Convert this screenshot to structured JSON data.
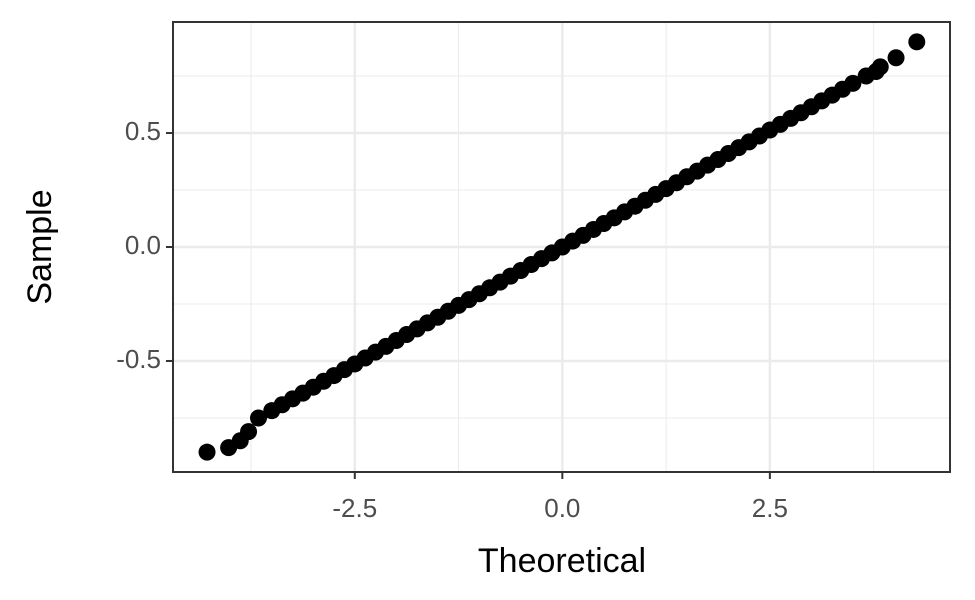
{
  "chart_data": {
    "type": "scatter",
    "xlabel": "Theoretical",
    "ylabel": "Sample",
    "x": [
      -4.28,
      -4.02,
      -3.88,
      -3.78,
      -3.66,
      -3.5,
      -3.375,
      -3.25,
      -3.125,
      -3.0,
      -2.875,
      -2.75,
      -2.625,
      -2.5,
      -2.375,
      -2.25,
      -2.125,
      -2.0,
      -1.875,
      -1.75,
      -1.625,
      -1.5,
      -1.375,
      -1.25,
      -1.125,
      -1.0,
      -0.875,
      -0.75,
      -0.625,
      -0.5,
      -0.375,
      -0.25,
      -0.125,
      0,
      0.125,
      0.25,
      0.375,
      0.5,
      0.625,
      0.75,
      0.875,
      1.0,
      1.125,
      1.25,
      1.375,
      1.5,
      1.625,
      1.75,
      1.875,
      2.0,
      2.125,
      2.25,
      2.375,
      2.5,
      2.625,
      2.75,
      2.875,
      3.0,
      3.125,
      3.25,
      3.375,
      3.5,
      3.66,
      3.78,
      3.83,
      4.02,
      4.27
    ],
    "values": [
      -0.9,
      -0.88,
      -0.85,
      -0.81,
      -0.75,
      -0.718,
      -0.692,
      -0.666,
      -0.641,
      -0.615,
      -0.589,
      -0.564,
      -0.538,
      -0.513,
      -0.487,
      -0.461,
      -0.436,
      -0.41,
      -0.384,
      -0.359,
      -0.333,
      -0.308,
      -0.282,
      -0.256,
      -0.231,
      -0.205,
      -0.179,
      -0.154,
      -0.128,
      -0.103,
      -0.077,
      -0.051,
      -0.026,
      0,
      0.026,
      0.051,
      0.077,
      0.103,
      0.128,
      0.154,
      0.179,
      0.205,
      0.231,
      0.256,
      0.282,
      0.308,
      0.333,
      0.359,
      0.384,
      0.41,
      0.436,
      0.461,
      0.487,
      0.513,
      0.538,
      0.564,
      0.589,
      0.615,
      0.641,
      0.666,
      0.692,
      0.718,
      0.75,
      0.77,
      0.79,
      0.83,
      0.9
    ],
    "color": "#000000",
    "xlim": [
      -4.69,
      4.67
    ],
    "ylim": [
      -0.987,
      0.987
    ],
    "xticks": [
      -2.5,
      {
        "value": 0,
        "label": "0.0"
      },
      2.5
    ],
    "yticks": [
      -0.5,
      {
        "value": 0,
        "label": "0.0"
      },
      0.5
    ],
    "xminorticks": [
      -3.75,
      -1.25,
      1.25,
      3.75
    ],
    "yminorticks": [
      -0.75,
      -0.25,
      0.25,
      0.75
    ],
    "grid": true
  }
}
